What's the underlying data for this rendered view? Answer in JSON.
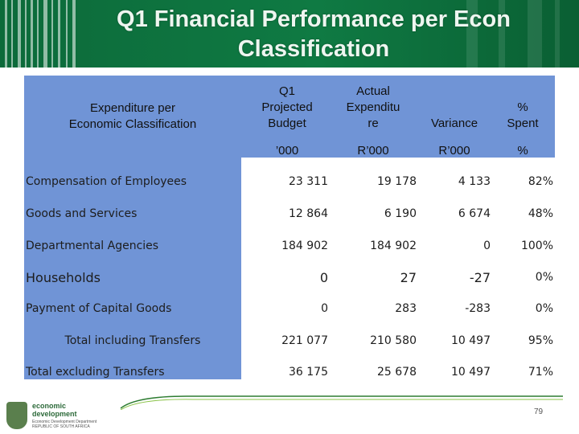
{
  "title": "Q1 Financial Performance per Econ Classification",
  "table": {
    "row_header": [
      "Expenditure per",
      "Economic Classification"
    ],
    "columns": [
      {
        "lines": [
          "Q1",
          "Projected",
          "Budget"
        ],
        "unit": "’000"
      },
      {
        "lines": [
          "Actual",
          "Expenditu",
          "re"
        ],
        "unit": "R’000"
      },
      {
        "lines": [
          "Variance"
        ],
        "unit": "R’000"
      },
      {
        "lines": [
          "%",
          "Spent"
        ],
        "unit": "%"
      }
    ],
    "rows": [
      {
        "label": "Compensation of Employees",
        "values": [
          "23 311",
          "19 178",
          "4 133",
          "82%"
        ]
      },
      {
        "label": "Goods and Services",
        "values": [
          "12 864",
          "6 190",
          "6 674",
          "48%"
        ]
      },
      {
        "label": "Departmental Agencies",
        "values": [
          "184 902",
          "184 902",
          "0",
          "100%"
        ]
      },
      {
        "label": "Households",
        "values": [
          "0",
          "27",
          "-27",
          "0%"
        ]
      },
      {
        "label": "Payment of Capital Goods",
        "values": [
          "0",
          "283",
          "-283",
          "0%"
        ]
      },
      {
        "label": "Total including Transfers",
        "values": [
          "221 077",
          "210 580",
          "10 497",
          "95%"
        ]
      },
      {
        "label": "Total excluding Transfers",
        "values": [
          "36 175",
          "25 678",
          "10 497",
          "71%"
        ]
      }
    ]
  },
  "footer": {
    "logo_text": [
      "economic",
      "development"
    ],
    "dept_text": [
      "Economic Development Department",
      "REPUBLIC OF SOUTH AFRICA"
    ],
    "page_number": "79"
  },
  "colors": {
    "header_green": "#0f7a43",
    "table_blue": "#7094d6",
    "footer_line": "#2e7d32"
  }
}
